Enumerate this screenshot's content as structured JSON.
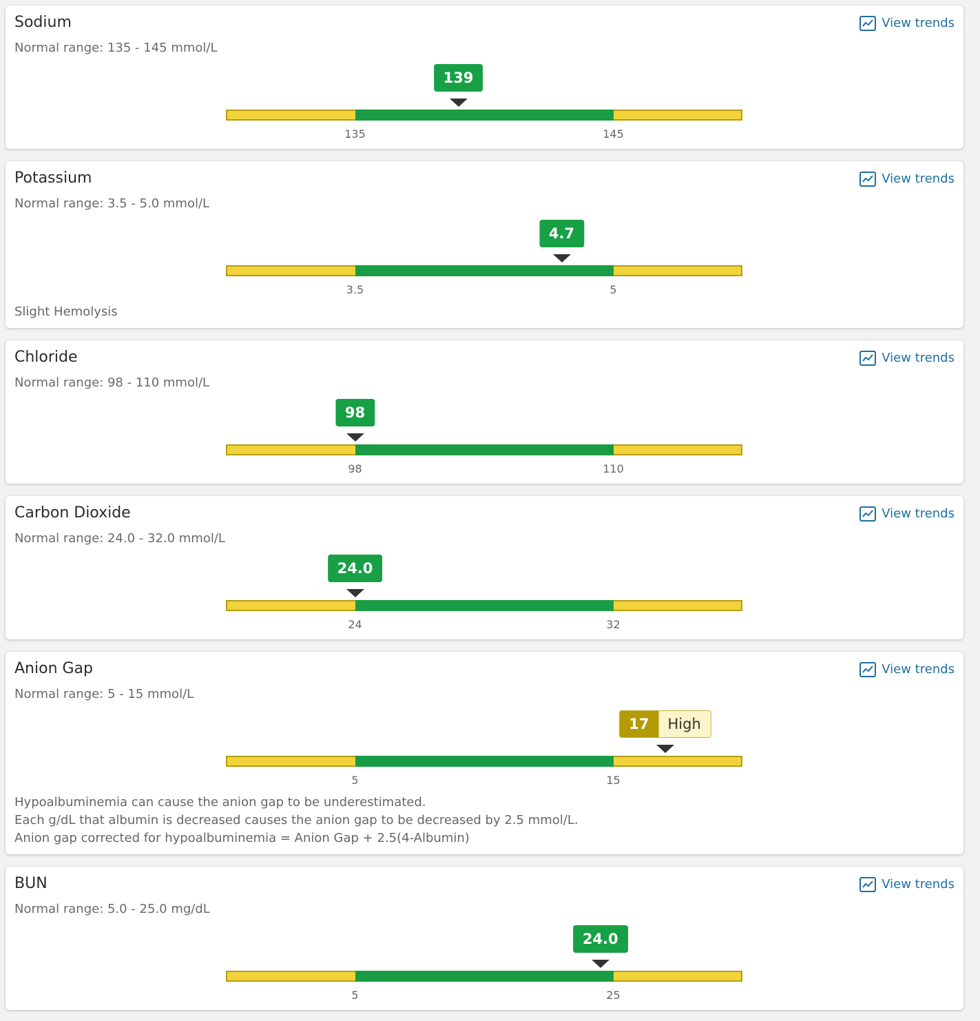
{
  "results": [
    {
      "name": "Sodium",
      "range": "Normal range: 135 - 145 mmol/L",
      "value": "139",
      "ticks": [
        135,
        145
      ],
      "link": "View trends"
    },
    {
      "name": "Potassium",
      "range": "Normal range: 3.5 - 5.0 mmol/L",
      "value": "4.7",
      "ticks": [
        3.5,
        5
      ],
      "link": "View trends",
      "notes": [
        "Slight Hemolysis"
      ]
    },
    {
      "name": "Chloride",
      "range": "Normal range: 98 - 110 mmol/L",
      "value": "98",
      "ticks": [
        98,
        110
      ],
      "link": "View trends"
    },
    {
      "name": "Carbon Dioxide",
      "range": "Normal range: 24.0 - 32.0 mmol/L",
      "value": "24.0",
      "ticks": [
        24,
        32
      ],
      "link": "View trends"
    },
    {
      "name": "Anion Gap",
      "range": "Normal range: 5 - 15 mmol/L",
      "value": "17",
      "flag": "High",
      "ticks": [
        5,
        15
      ],
      "link": "View trends",
      "notes": [
        "Hypoalbuminemia can cause the anion gap to be underestimated.",
        "Each g/dL that albumin is decreased causes the anion gap to be decreased by 2.5 mmol/L.",
        "Anion gap corrected for hypoalbuminemia = Anion Gap + 2.5(4-Albumin)"
      ]
    },
    {
      "name": "BUN",
      "range": "Normal range: 5.0 - 25.0 mg/dL",
      "value": "24.0",
      "ticks": [
        5,
        25
      ],
      "link": "View trends"
    }
  ]
}
